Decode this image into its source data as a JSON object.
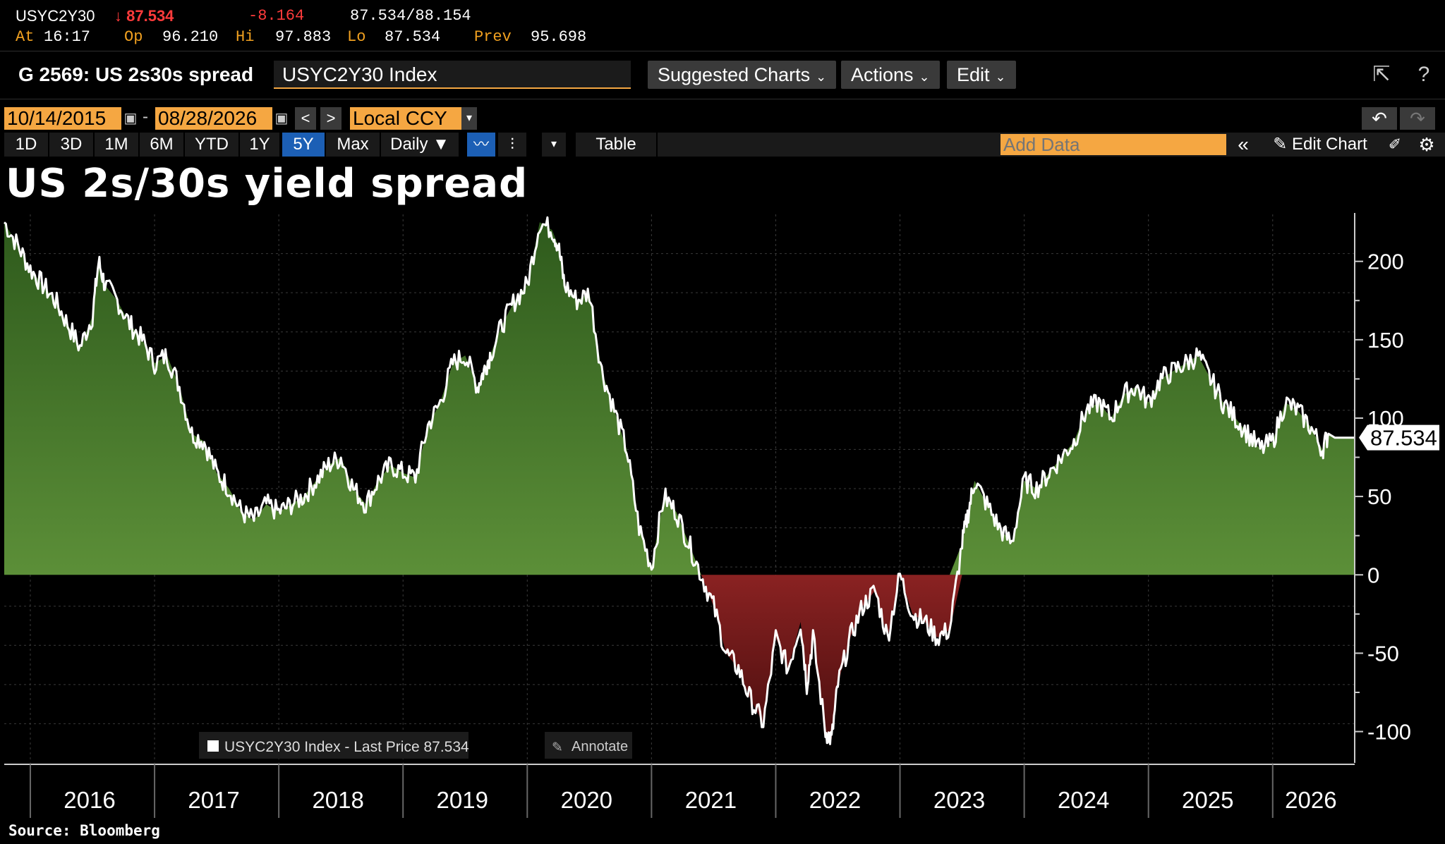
{
  "quote": {
    "ticker": "USYC2Y30",
    "last": "87.534",
    "change": "-8.164",
    "bid_ask": "87.534/88.154",
    "at_label": "At",
    "at_time": "16:17",
    "op_label": "Op",
    "op": "96.210",
    "hi_label": "Hi",
    "hi": "97.883",
    "lo_label": "Lo",
    "lo": "87.534",
    "prev_label": "Prev",
    "prev": "95.698"
  },
  "titlebar": {
    "graph_title": "G 2569: US 2s30s spread",
    "security": "USYC2Y30 Index",
    "suggested": "Suggested Charts",
    "actions": "Actions",
    "edit": "Edit"
  },
  "controls": {
    "start_date": "10/14/2015",
    "end_date": "08/28/2026",
    "currency": "Local CCY",
    "ranges": [
      "1D",
      "3D",
      "1M",
      "6M",
      "YTD",
      "1Y",
      "5Y",
      "Max"
    ],
    "selected_range": "5Y",
    "frequency": "Daily",
    "table": "Table",
    "add_data_placeholder": "Add Data",
    "edit_chart": "Edit Chart"
  },
  "colors": {
    "positive_fill": "#4f7f2e",
    "negative_fill": "#7a1c1c",
    "line": "#ffffff",
    "accent": "#f5a742",
    "selected": "#1c5fb5"
  },
  "chart_data": {
    "type": "area",
    "title": "US 2s/30s yield spread",
    "series": [
      {
        "name": "USYC2Y30 Index - Last Price 87.534",
        "x": [
          2015.79,
          2015.9,
          2016.0,
          2016.1,
          2016.2,
          2016.3,
          2016.4,
          2016.5,
          2016.55,
          2016.6,
          2016.7,
          2016.8,
          2016.9,
          2017.0,
          2017.1,
          2017.2,
          2017.3,
          2017.4,
          2017.5,
          2017.6,
          2017.7,
          2017.8,
          2017.9,
          2018.0,
          2018.1,
          2018.2,
          2018.3,
          2018.4,
          2018.5,
          2018.6,
          2018.7,
          2018.8,
          2018.9,
          2019.0,
          2019.1,
          2019.2,
          2019.3,
          2019.4,
          2019.5,
          2019.6,
          2019.65,
          2019.7,
          2019.8,
          2019.9,
          2020.0,
          2020.1,
          2020.2,
          2020.25,
          2020.3,
          2020.4,
          2020.5,
          2020.6,
          2020.7,
          2020.8,
          2020.9,
          2021.0,
          2021.1,
          2021.2,
          2021.3,
          2021.4,
          2021.5,
          2021.6,
          2021.7,
          2021.8,
          2021.9,
          2022.0,
          2022.1,
          2022.2,
          2022.25,
          2022.3,
          2022.4,
          2022.45,
          2022.5,
          2022.6,
          2022.7,
          2022.8,
          2022.9,
          2023.0,
          2023.1,
          2023.2,
          2023.3,
          2023.4,
          2023.5,
          2023.55,
          2023.6,
          2023.7,
          2023.8,
          2023.9,
          2024.0,
          2024.1,
          2024.2,
          2024.3,
          2024.4,
          2024.5,
          2024.6,
          2024.7,
          2024.8,
          2024.9,
          2025.0,
          2025.1,
          2025.2,
          2025.3,
          2025.4,
          2025.5,
          2025.6,
          2025.7,
          2025.8,
          2025.9,
          2026.0,
          2026.1,
          2026.2,
          2026.3,
          2026.4,
          2026.45,
          2026.5,
          2026.55,
          2026.6,
          2026.66
        ],
        "y": [
          225,
          210,
          195,
          185,
          175,
          160,
          145,
          165,
          200,
          185,
          175,
          160,
          150,
          135,
          140,
          120,
          90,
          85,
          65,
          55,
          40,
          35,
          45,
          40,
          45,
          50,
          60,
          70,
          75,
          55,
          45,
          60,
          70,
          65,
          62,
          95,
          110,
          135,
          140,
          120,
          130,
          140,
          160,
          175,
          185,
          225,
          220,
          210,
          185,
          175,
          180,
          130,
          105,
          80,
          30,
          5,
          50,
          40,
          20,
          0,
          -20,
          -50,
          -60,
          -80,
          -95,
          -40,
          -60,
          -30,
          -70,
          -40,
          -100,
          -105,
          -70,
          -40,
          -20,
          -10,
          -40,
          0,
          -25,
          -30,
          -40,
          -35,
          20,
          40,
          60,
          45,
          30,
          20,
          60,
          55,
          65,
          75,
          85,
          105,
          110,
          100,
          115,
          120,
          110,
          125,
          130,
          135,
          140,
          125,
          110,
          100,
          90,
          80,
          85,
          110,
          105,
          95,
          80,
          90,
          87.534,
          87.534,
          87.534,
          87.534
        ]
      }
    ],
    "xlim": [
      2015.79,
      2026.66
    ],
    "ylim": [
      -120,
      230
    ],
    "yticks": [
      200,
      150,
      100,
      50,
      0,
      -50,
      -100
    ],
    "ytick_labels": [
      "200",
      "150",
      "100",
      "50",
      "0",
      "-50",
      "-100"
    ],
    "xtick_labels": [
      "2016",
      "2017",
      "2018",
      "2019",
      "2020",
      "2021",
      "2022",
      "2023",
      "2024",
      "2025",
      "2026"
    ],
    "last_value": "87.534",
    "legend": "USYC2Y30 Index - Last Price 87.534",
    "legend_position": "bottom-left",
    "annotate_label": "Annotate",
    "grid": true,
    "source": "Source: Bloomberg"
  }
}
